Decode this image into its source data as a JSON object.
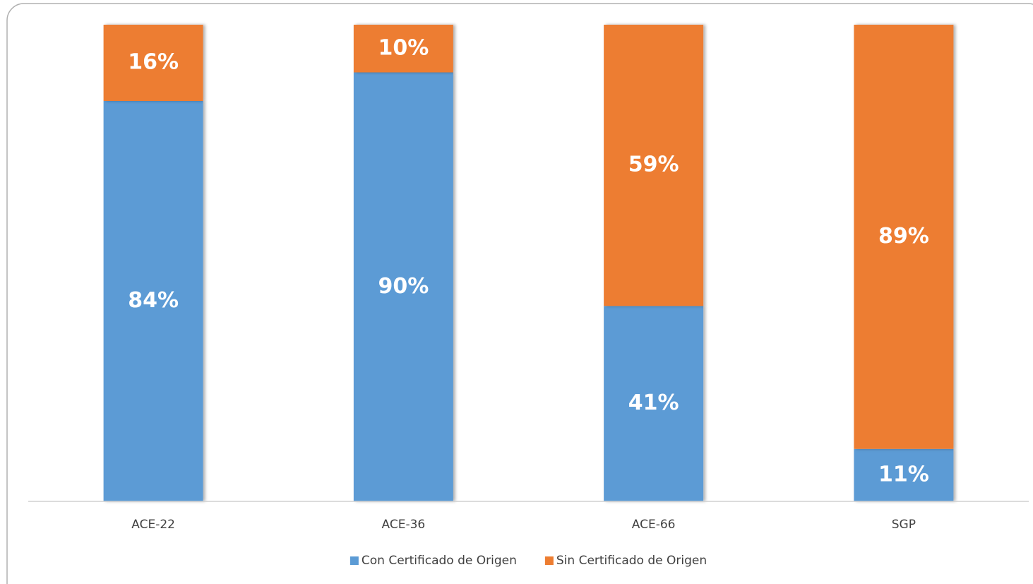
{
  "chart_data": {
    "type": "stacked_bar",
    "categories": [
      "ACE-22",
      "ACE-36",
      "ACE-66",
      "SGP"
    ],
    "series": [
      {
        "name": "Con Certificado de Origen",
        "color": "#5b9bd5",
        "values": [
          84,
          90,
          41,
          11
        ],
        "value_labels": [
          "84%",
          "90%",
          "41%",
          "11%"
        ]
      },
      {
        "name": "Sin Certificado de Origen",
        "color": "#ed7d31",
        "values": [
          16,
          10,
          59,
          89
        ],
        "value_labels": [
          "16%",
          "10%",
          "59%",
          "89%"
        ]
      }
    ],
    "ylim": [
      0,
      100
    ],
    "legend": "bottom"
  }
}
